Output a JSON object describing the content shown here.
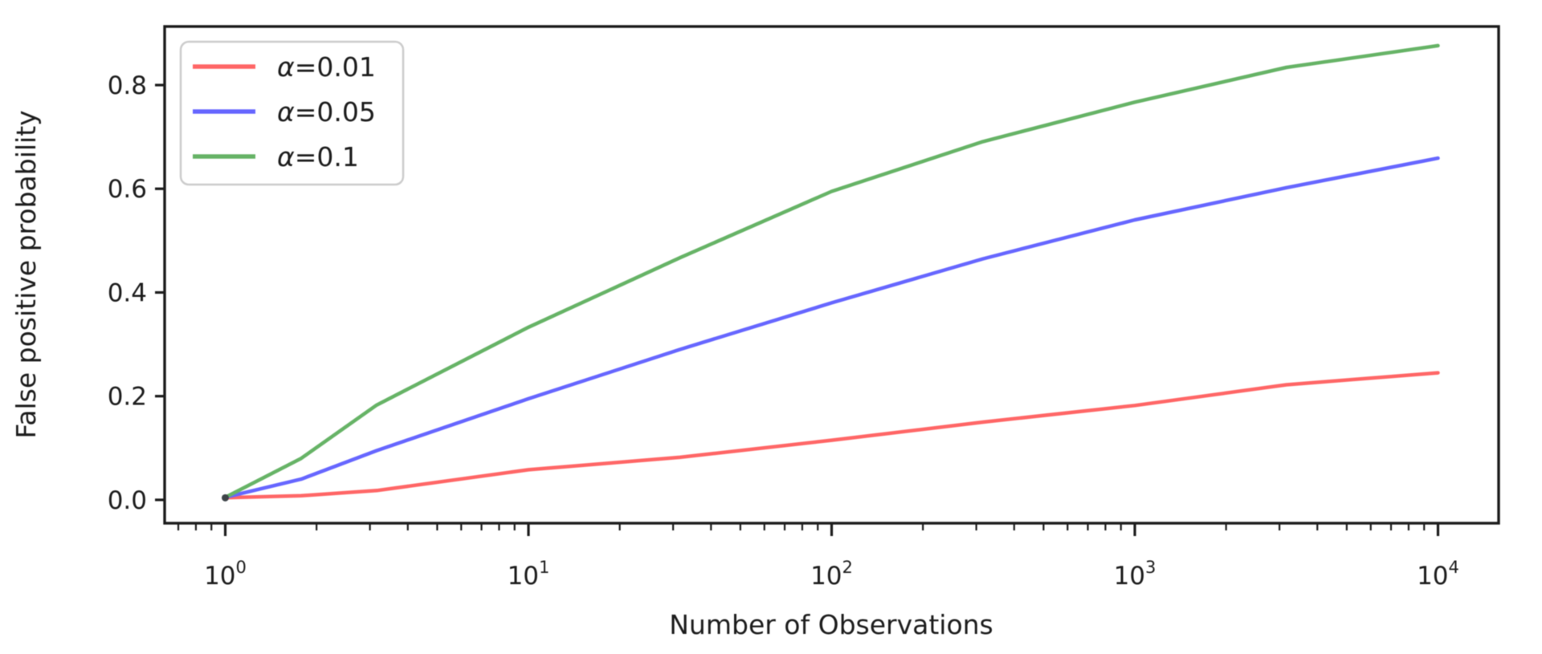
{
  "figure": {
    "background": "#ffffff",
    "axis_color": "#1c1c1c",
    "start_point_color": "#3d4348"
  },
  "chart_data": {
    "type": "line",
    "title": "",
    "xlabel": "Number of Observations",
    "ylabel": "False positive probability",
    "x_scale": "log",
    "xlim_exponents": [
      -0.2,
      4.2
    ],
    "ylim": [
      -0.045,
      0.913
    ],
    "grid": false,
    "x": [
      1,
      1.78,
      3.16,
      10,
      31.6,
      100,
      316,
      1000,
      3162,
      10000
    ],
    "series": [
      {
        "name": "α=0.01",
        "color": "#ff6666",
        "values": [
          0.004,
          0.008,
          0.018,
          0.058,
          0.082,
          0.115,
          0.15,
          0.182,
          0.222,
          0.245
        ]
      },
      {
        "name": "α=0.05",
        "color": "#6666ff",
        "values": [
          0.005,
          0.04,
          0.095,
          0.195,
          0.29,
          0.38,
          0.465,
          0.54,
          0.602,
          0.659
        ]
      },
      {
        "name": "α=0.1",
        "color": "#66b366",
        "values": [
          0.005,
          0.08,
          0.183,
          0.333,
          0.467,
          0.595,
          0.691,
          0.767,
          0.834,
          0.876
        ]
      }
    ],
    "y_ticks": {
      "values": [
        0.0,
        0.2,
        0.4,
        0.6,
        0.8
      ],
      "labels": [
        "0.0",
        "0.2",
        "0.4",
        "0.6",
        "0.8"
      ]
    },
    "x_ticks": {
      "base": "10",
      "exponents": [
        "0",
        "1",
        "2",
        "3",
        "4"
      ]
    },
    "legend": {
      "position": "upper-left",
      "border_color": "#cccccc",
      "background": "#ffffff",
      "labels": [
        "α=0.01",
        "α=0.05",
        "α=0.1"
      ]
    }
  }
}
